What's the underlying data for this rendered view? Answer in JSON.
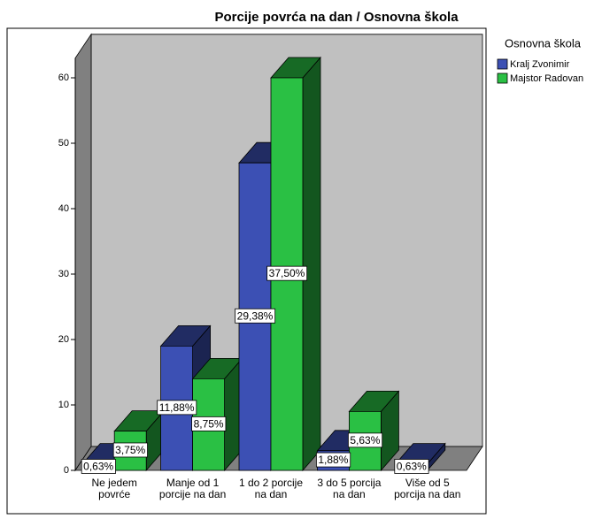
{
  "chart_data": {
    "type": "bar3d",
    "title": "Porcije povrća na dan / Osnovna škola",
    "legend_title": "Osnovna škola",
    "categories": [
      "Ne jedem povrće",
      "Manje od 1 porcije na dan",
      "1 do 2 porcije na dan",
      "3 do 5 porcija na dan",
      "Više od 5 porcija na dan"
    ],
    "series": [
      {
        "name": "Kralj Zvonimir",
        "color": "#3c50b4",
        "values": [
          1,
          19,
          47,
          3,
          1
        ],
        "value_labels": [
          "0,63%",
          "11,88%",
          "29,38%",
          "1,88%",
          "0,63%"
        ]
      },
      {
        "name": "Majstor Radovan",
        "color": "#2ac044",
        "values": [
          6,
          14,
          60,
          9,
          null
        ],
        "value_labels": [
          "3,75%",
          "8,75%",
          "37,50%",
          "5,63%",
          null
        ]
      }
    ],
    "ylim": [
      0,
      63
    ],
    "yticks": [
      0,
      10,
      20,
      30,
      40,
      50,
      60
    ],
    "legend": "right"
  }
}
